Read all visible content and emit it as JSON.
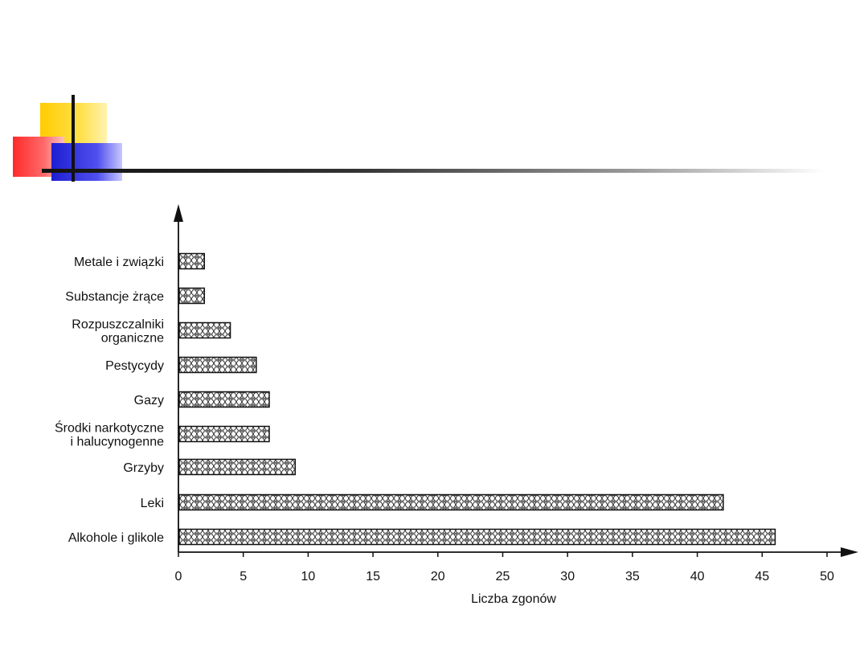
{
  "chart_data": {
    "type": "bar",
    "orientation": "horizontal",
    "categories": [
      [
        "Metale i związki"
      ],
      [
        "Substancje żrące"
      ],
      [
        "Rozpuszczalniki",
        "organiczne"
      ],
      [
        "Pestycydy"
      ],
      [
        "Gazy"
      ],
      [
        "Środki narkotyczne",
        "i halucynogenne"
      ],
      [
        "Grzyby"
      ],
      [
        "Leki"
      ],
      [
        "Alkohole i glikole"
      ]
    ],
    "values": [
      2,
      2,
      4,
      6,
      7,
      7,
      9,
      42,
      46
    ],
    "xlabel": "Liczba zgonów",
    "ylabel": "",
    "xlim": [
      0,
      50
    ],
    "xticks": [
      0,
      5,
      10,
      15,
      20,
      25,
      30,
      35,
      40,
      45,
      50
    ],
    "grid": false,
    "legend": "none",
    "bar_pattern": "hexagonal-hatch",
    "colors": {
      "bar_fill": "#ffffff",
      "bar_stroke": "#111111",
      "axis": "#111111"
    }
  },
  "decoration": {
    "colors": {
      "yellow": "#ffcc00",
      "red": "#ff2a2a",
      "blue": "#1e1ed2",
      "line": "#111111"
    }
  }
}
